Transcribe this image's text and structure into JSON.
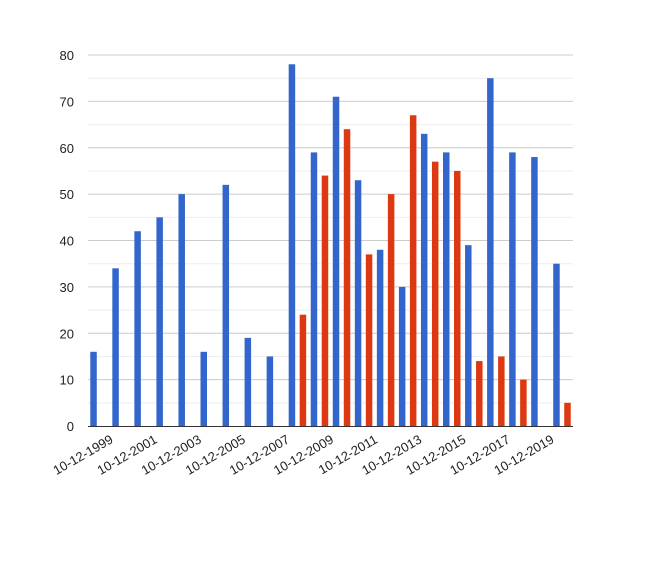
{
  "chart_data": {
    "type": "bar",
    "title": "",
    "xlabel": "",
    "ylabel": "",
    "ylim": [
      0,
      80
    ],
    "yticks": [
      0,
      10,
      20,
      30,
      40,
      50,
      60,
      70,
      80
    ],
    "grid": true,
    "legend": "none",
    "categories": [
      "10-12-1999",
      "10-12-2000",
      "10-12-2001",
      "10-12-2002",
      "10-12-2003",
      "10-12-2004",
      "10-12-2005",
      "10-12-2006",
      "10-12-2007",
      "10-12-2008",
      "10-12-2009",
      "10-12-2010",
      "10-12-2011",
      "10-12-2012",
      "10-12-2013",
      "10-12-2014",
      "10-12-2015",
      "10-12-2016",
      "10-12-2017",
      "10-12-2018",
      "10-12-2019",
      "10-12-2020"
    ],
    "x_tick_labels": [
      "10-12-1999",
      "10-12-2001",
      "10-12-2003",
      "10-12-2005",
      "10-12-2007",
      "10-12-2009",
      "10-12-2011",
      "10-12-2013",
      "10-12-2015",
      "10-12-2017",
      "10-12-2019"
    ],
    "series": [
      {
        "color": "#3366cc",
        "values": [
          16,
          34,
          42,
          45,
          50,
          16,
          52,
          19,
          15,
          78,
          59,
          71,
          53,
          38,
          30,
          63,
          59,
          39,
          75,
          59,
          58,
          35
        ]
      },
      {
        "color": "#dc3912",
        "values": [
          null,
          null,
          null,
          null,
          null,
          null,
          null,
          null,
          null,
          24,
          54,
          64,
          37,
          50,
          67,
          57,
          55,
          14,
          15,
          10,
          null,
          5
        ]
      }
    ]
  }
}
